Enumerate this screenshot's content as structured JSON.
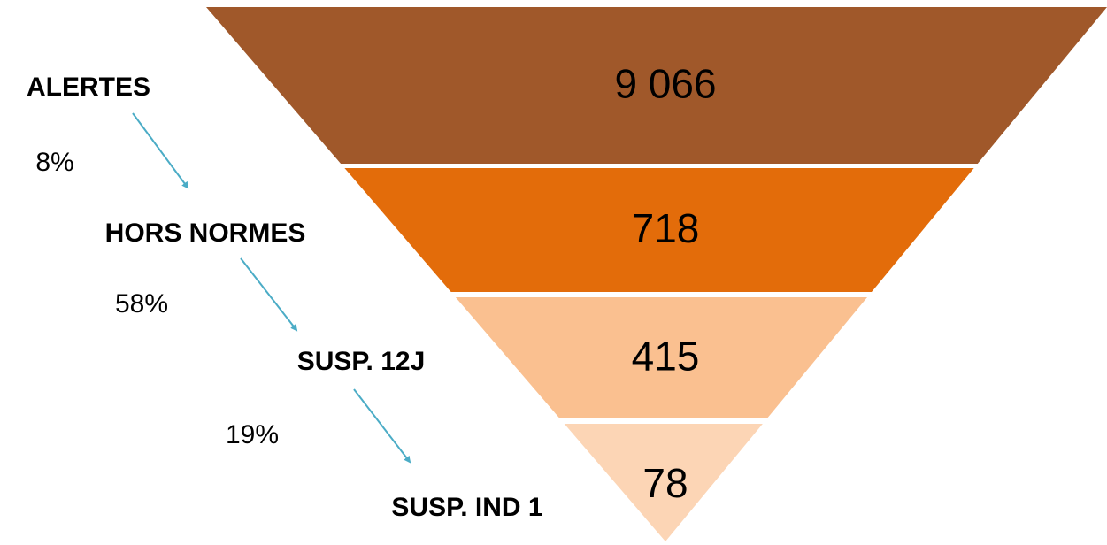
{
  "chart_data": {
    "type": "funnel",
    "categories": [
      "ALERTES",
      "HORS NORMES",
      "SUSP. 12J",
      "SUSP. IND 1"
    ],
    "values": [
      9066,
      718,
      415,
      78
    ],
    "value_labels": [
      "9 066",
      "718",
      "415",
      "78"
    ],
    "colors": [
      "#a0582a",
      "#e36c0a",
      "#fac090",
      "#fcd5b5"
    ],
    "conversions": {
      "values": [
        8,
        58,
        19
      ],
      "value_labels": [
        "8%",
        "58%",
        "19%"
      ],
      "color": "#4bacc6"
    }
  }
}
